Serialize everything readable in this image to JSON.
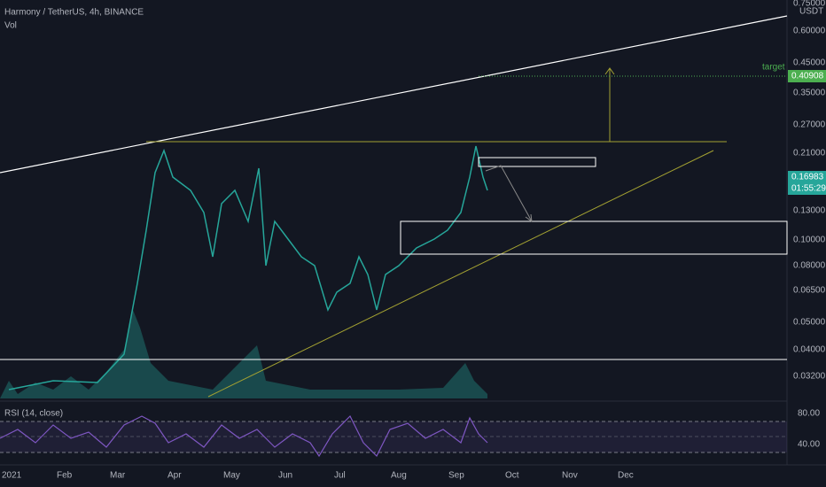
{
  "header": {
    "symbol": "Harmony / TetherUS, 4h, BINANCE",
    "volume": "Vol",
    "rsi": "RSI (14, close)"
  },
  "price_axis": {
    "currency": "USDT",
    "labels": [
      "0.75000",
      "0.60000",
      "0.45000",
      "0.35000",
      "0.27000",
      "0.21000",
      "0.13000",
      "0.10000",
      "0.08000",
      "0.06500",
      "0.05000",
      "0.04000",
      "0.03200"
    ],
    "last_price": "0.16983",
    "countdown": "01:55:29",
    "target_label": "target",
    "target_price": "0.40908"
  },
  "rsi_axis": {
    "labels": [
      "80.00",
      "40.00"
    ]
  },
  "time_axis": {
    "labels": [
      "2021",
      "Feb",
      "Mar",
      "Apr",
      "May",
      "Jun",
      "Jul",
      "Aug",
      "Sep",
      "Oct",
      "Nov",
      "Dec"
    ]
  }
}
